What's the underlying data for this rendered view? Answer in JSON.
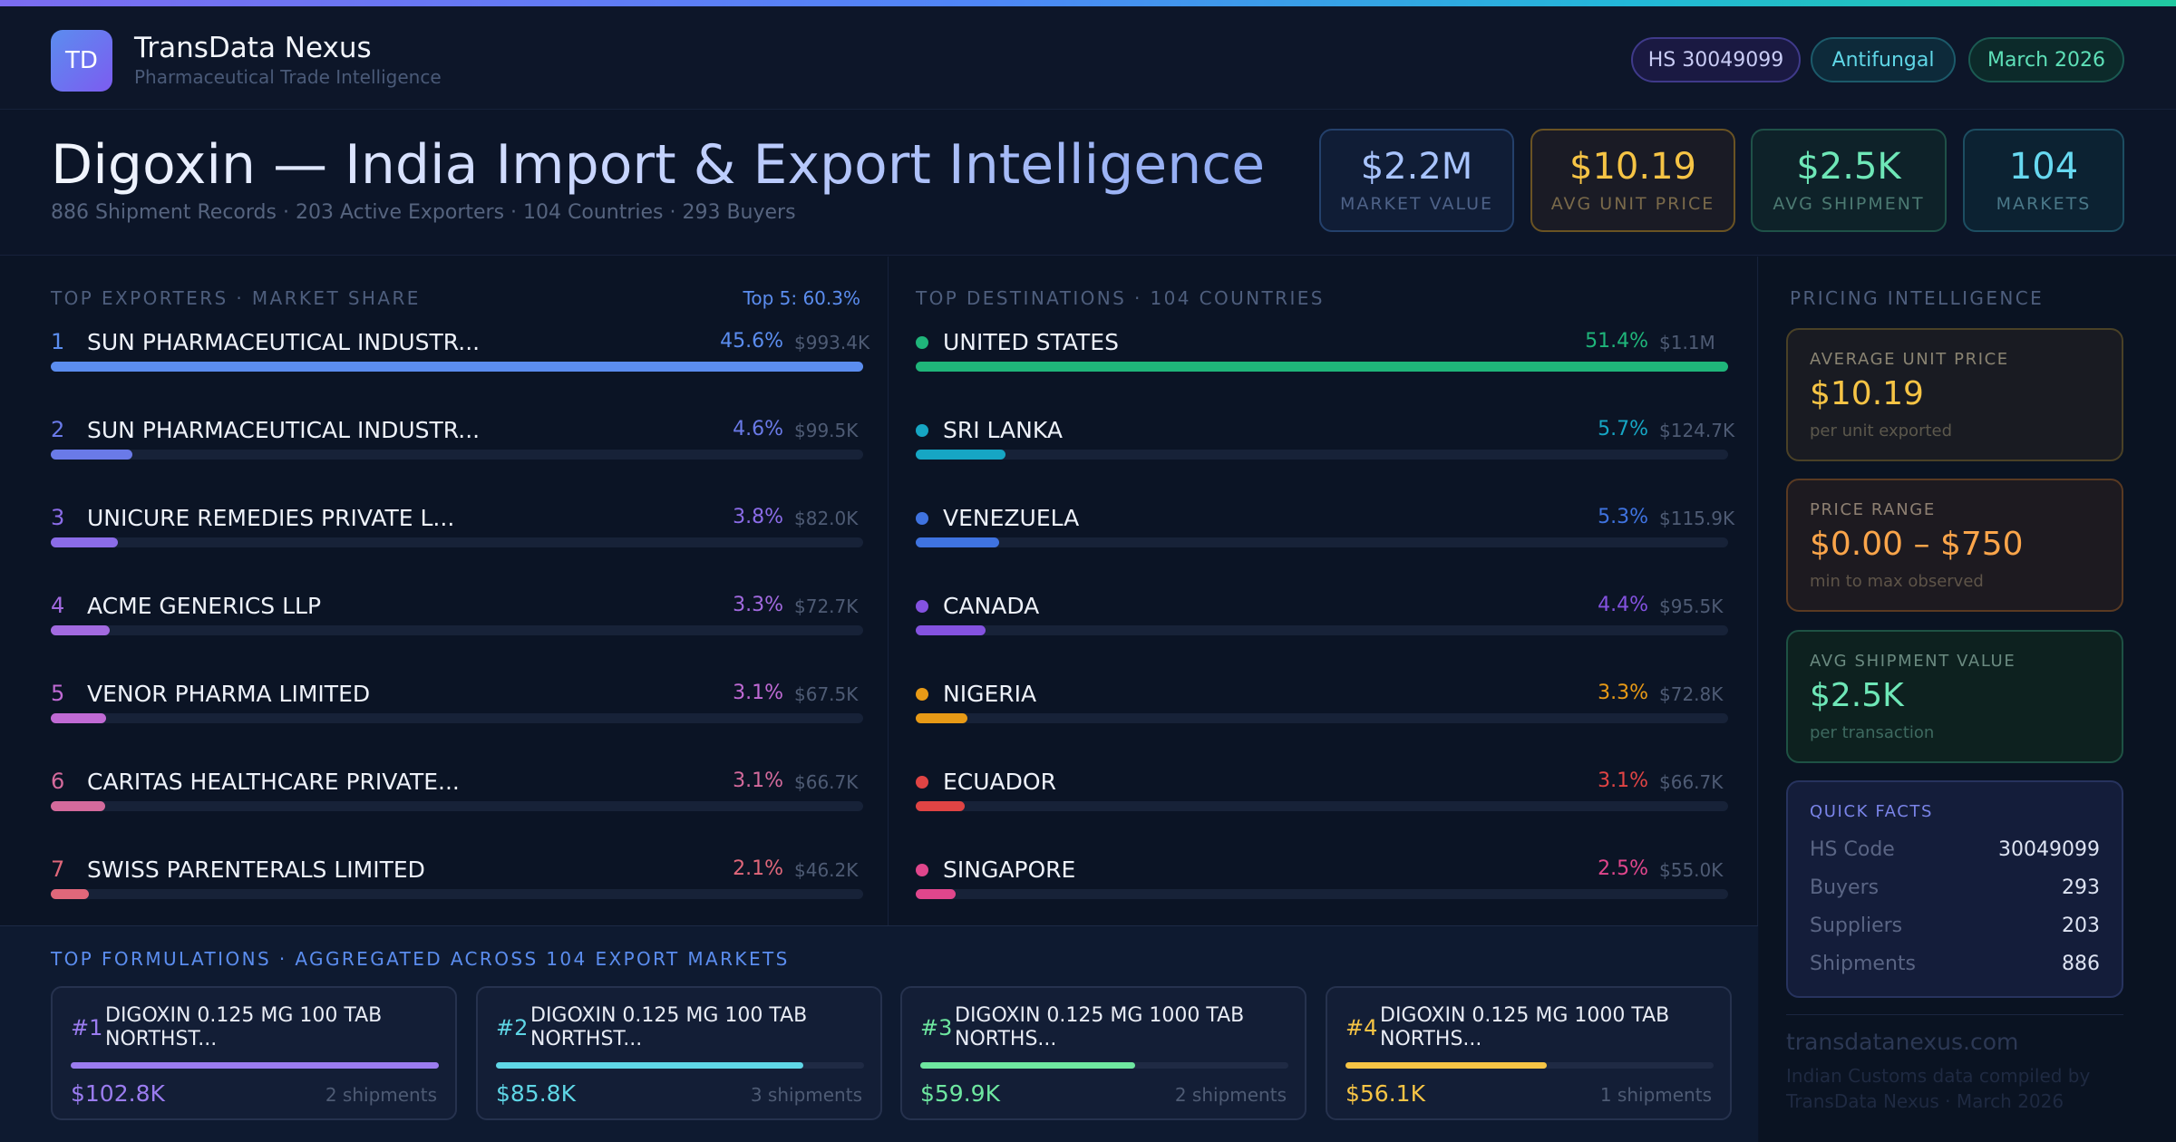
{
  "header": {
    "logo_text": "TD",
    "brand_name": "TransData Nexus",
    "brand_sub": "Pharmaceutical Trade Intelligence",
    "pills": {
      "hs": "HS 30049099",
      "category": "Antifungal",
      "date": "March 2026"
    }
  },
  "title": {
    "main": "Digoxin — India Import & Export Intelligence",
    "sub": "886 Shipment Records · 203 Active Exporters · 104 Countries · 293 Buyers"
  },
  "kpis": [
    {
      "value": "$2.2M",
      "label": "MARKET VALUE"
    },
    {
      "value": "$10.19",
      "label": "AVG UNIT PRICE"
    },
    {
      "value": "$2.5K",
      "label": "AVG SHIPMENT"
    },
    {
      "value": "104",
      "label": "MARKETS"
    }
  ],
  "exporters": {
    "title": "TOP EXPORTERS · MARKET SHARE",
    "note": "Top 5: 60.3%",
    "items": [
      {
        "rank": "1",
        "name": "SUN PHARMACEUTICAL INDUSTR...",
        "pct": "45.6%",
        "amount": "$993.4K",
        "share": 100,
        "color": "#5b8def"
      },
      {
        "rank": "2",
        "name": "SUN PHARMACEUTICAL INDUSTR...",
        "pct": "4.6%",
        "amount": "$99.5K",
        "share": 10.1,
        "color": "#6a7ae8"
      },
      {
        "rank": "3",
        "name": "UNICURE REMEDIES PRIVATE L...",
        "pct": "3.8%",
        "amount": "$82.0K",
        "share": 8.3,
        "color": "#8b6ce8"
      },
      {
        "rank": "4",
        "name": "ACME GENERICS LLP",
        "pct": "3.3%",
        "amount": "$72.7K",
        "share": 7.3,
        "color": "#a26ae0"
      },
      {
        "rank": "5",
        "name": "VENOR PHARMA LIMITED",
        "pct": "3.1%",
        "amount": "$67.5K",
        "share": 6.8,
        "color": "#c06ad4"
      },
      {
        "rank": "6",
        "name": "CARITAS HEALTHCARE PRIVATE...",
        "pct": "3.1%",
        "amount": "$66.7K",
        "share": 6.7,
        "color": "#d46a9c"
      },
      {
        "rank": "7",
        "name": "SWISS PARENTERALS LIMITED",
        "pct": "2.1%",
        "amount": "$46.2K",
        "share": 4.7,
        "color": "#e0677a"
      }
    ]
  },
  "destinations": {
    "title": "TOP DESTINATIONS · 104 COUNTRIES",
    "items": [
      {
        "name": "UNITED STATES",
        "pct": "51.4%",
        "amount": "$1.1M",
        "share": 100,
        "color": "#1fb57a"
      },
      {
        "name": "SRI LANKA",
        "pct": "5.7%",
        "amount": "$124.7K",
        "share": 11.1,
        "color": "#16a6c4"
      },
      {
        "name": "VENEZUELA",
        "pct": "5.3%",
        "amount": "$115.9K",
        "share": 10.3,
        "color": "#3f73e0"
      },
      {
        "name": "CANADA",
        "pct": "4.4%",
        "amount": "$95.5K",
        "share": 8.6,
        "color": "#8452e0"
      },
      {
        "name": "NIGERIA",
        "pct": "3.3%",
        "amount": "$72.8K",
        "share": 6.4,
        "color": "#e89a16"
      },
      {
        "name": "ECUADOR",
        "pct": "3.1%",
        "amount": "$66.7K",
        "share": 6.0,
        "color": "#e04444"
      },
      {
        "name": "SINGAPORE",
        "pct": "2.5%",
        "amount": "$55.0K",
        "share": 4.9,
        "color": "#e0468c"
      }
    ]
  },
  "pricing": {
    "title": "PRICING INTELLIGENCE",
    "cards": [
      {
        "label": "AVERAGE UNIT PRICE",
        "value": "$10.19",
        "note": "per unit exported"
      },
      {
        "label": "PRICE RANGE",
        "value": "$0.00 – $750",
        "note": "min to max observed"
      },
      {
        "label": "AVG SHIPMENT VALUE",
        "value": "$2.5K",
        "note": "per transaction"
      }
    ],
    "quick_facts": {
      "title": "QUICK FACTS",
      "rows": [
        {
          "key": "HS Code",
          "value": "30049099"
        },
        {
          "key": "Buyers",
          "value": "293"
        },
        {
          "key": "Suppliers",
          "value": "203"
        },
        {
          "key": "Shipments",
          "value": "886"
        }
      ]
    },
    "site": "transdatanexus.com",
    "credit": "Indian Customs data compiled by TransData Nexus · March 2026"
  },
  "formulations": {
    "title": "TOP FORMULATIONS · AGGREGATED ACROSS 104 EXPORT MARKETS",
    "items": [
      {
        "rank": "#1",
        "name": "DIGOXIN 0.125 MG 100 TAB NORTHST...",
        "value": "$102.8K",
        "shipments": "2 shipments",
        "share": 100,
        "color": "#9b7cf0"
      },
      {
        "rank": "#2",
        "name": "DIGOXIN 0.125 MG 100 TAB NORTHST...",
        "value": "$85.8K",
        "shipments": "3 shipments",
        "share": 83.5,
        "color": "#5fd6e6"
      },
      {
        "rank": "#3",
        "name": "DIGOXIN 0.125 MG 1000 TAB NORTHS...",
        "value": "$59.9K",
        "shipments": "2 shipments",
        "share": 58.3,
        "color": "#6ee7a0"
      },
      {
        "rank": "#4",
        "name": "DIGOXIN 0.125 MG 1000 TAB NORTHS...",
        "value": "$56.1K",
        "shipments": "1 shipments",
        "share": 54.6,
        "color": "#f6c445"
      }
    ]
  }
}
